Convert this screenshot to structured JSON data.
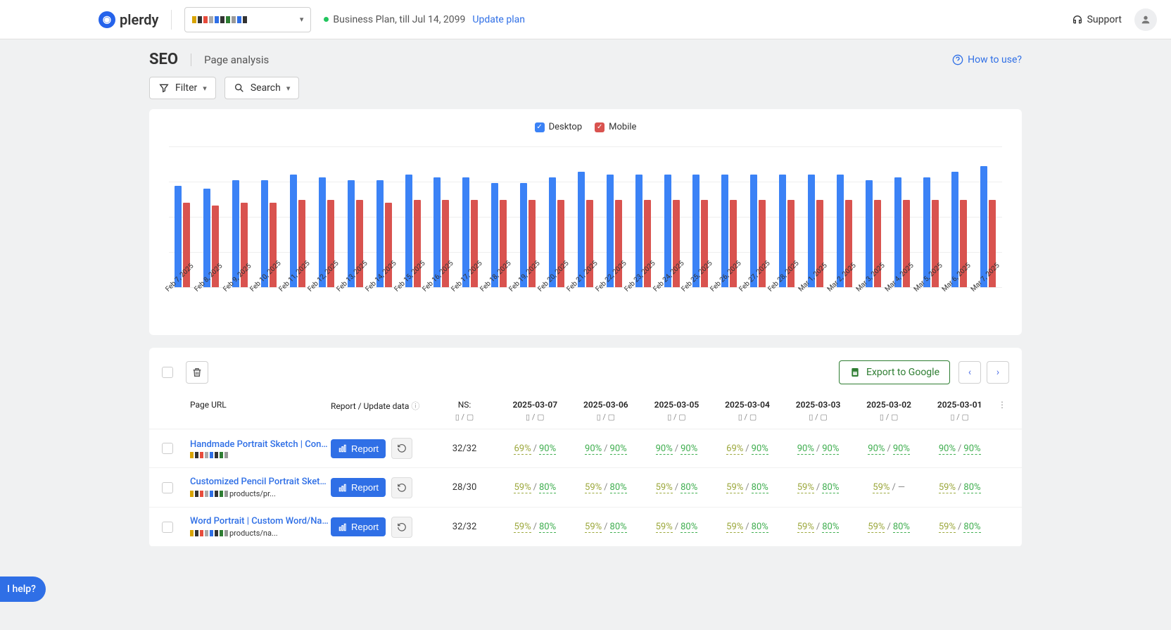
{
  "brand": "plerdy",
  "plan_text": "Business Plan, till Jul 14, 2099",
  "update_plan": "Update plan",
  "support": "Support",
  "page": {
    "title": "SEO",
    "sub": "Page analysis",
    "howto": "How to use?"
  },
  "filter": "Filter",
  "search": "Search",
  "legend": {
    "desktop": "Desktop",
    "mobile": "Mobile"
  },
  "chart": {
    "ymax": 100,
    "grid_steps": 4,
    "bar_color_desktop": "#3b82f6",
    "bar_color_mobile": "#d9534f",
    "points": [
      {
        "label": "Feb 7, 2025",
        "d": 72,
        "m": 60
      },
      {
        "label": "Feb 8, 2025",
        "d": 70,
        "m": 58
      },
      {
        "label": "Feb 9, 2025",
        "d": 76,
        "m": 60
      },
      {
        "label": "Feb 10, 2025",
        "d": 76,
        "m": 60
      },
      {
        "label": "Feb 11, 2025",
        "d": 80,
        "m": 62
      },
      {
        "label": "Feb 12, 2025",
        "d": 78,
        "m": 62
      },
      {
        "label": "Feb 13, 2025",
        "d": 76,
        "m": 62
      },
      {
        "label": "Feb 14, 2025",
        "d": 76,
        "m": 60
      },
      {
        "label": "Feb 15, 2025",
        "d": 80,
        "m": 62
      },
      {
        "label": "Feb 16, 2025",
        "d": 78,
        "m": 62
      },
      {
        "label": "Feb 17, 2025",
        "d": 78,
        "m": 62
      },
      {
        "label": "Feb 18, 2025",
        "d": 74,
        "m": 62
      },
      {
        "label": "Feb 19, 2025",
        "d": 74,
        "m": 62
      },
      {
        "label": "Feb 20, 2025",
        "d": 78,
        "m": 62
      },
      {
        "label": "Feb 21, 2025",
        "d": 82,
        "m": 62
      },
      {
        "label": "Feb 22, 2025",
        "d": 80,
        "m": 62
      },
      {
        "label": "Feb 23, 2025",
        "d": 80,
        "m": 62
      },
      {
        "label": "Feb 24, 2025",
        "d": 80,
        "m": 62
      },
      {
        "label": "Feb 25, 2025",
        "d": 80,
        "m": 62
      },
      {
        "label": "Feb 26, 2025",
        "d": 80,
        "m": 62
      },
      {
        "label": "Feb 27, 2025",
        "d": 80,
        "m": 62
      },
      {
        "label": "Feb 28, 2025",
        "d": 80,
        "m": 62
      },
      {
        "label": "Mar 1, 2025",
        "d": 80,
        "m": 62
      },
      {
        "label": "Mar 2, 2025",
        "d": 80,
        "m": 62
      },
      {
        "label": "Mar 3, 2025",
        "d": 76,
        "m": 62
      },
      {
        "label": "Mar 4, 2025",
        "d": 78,
        "m": 62
      },
      {
        "label": "Mar 5, 2025",
        "d": 78,
        "m": 62
      },
      {
        "label": "Mar 6, 2025",
        "d": 82,
        "m": 62
      },
      {
        "label": "Mar 7, 2025",
        "d": 86,
        "m": 62
      }
    ]
  },
  "export": "Export to Google",
  "columns": {
    "url": "Page URL",
    "report": "Report / Update data",
    "ns": "NS:",
    "icons": "▯ / ▢",
    "dates": [
      "2025-03-07",
      "2025-03-06",
      "2025-03-05",
      "2025-03-04",
      "2025-03-03",
      "2025-03-02",
      "2025-03-01"
    ]
  },
  "report_btn": "Report",
  "rows": [
    {
      "title": "Handmade Portrait Sketch | Convert P...",
      "sub": "",
      "ns": "32/32",
      "cells": [
        [
          "69%",
          "90%",
          "olive",
          "green"
        ],
        [
          "90%",
          "90%",
          "green",
          "green"
        ],
        [
          "90%",
          "90%",
          "green",
          "green"
        ],
        [
          "69%",
          "90%",
          "olive",
          "green"
        ],
        [
          "90%",
          "90%",
          "green",
          "green"
        ],
        [
          "90%",
          "90%",
          "green",
          "green"
        ],
        [
          "90%",
          "90%",
          "green",
          "green"
        ]
      ]
    },
    {
      "title": "Customized Pencil Portrait Sketch| C...",
      "sub": "products/pr...",
      "ns": "28/30",
      "cells": [
        [
          "59%",
          "80%",
          "olive",
          "green"
        ],
        [
          "59%",
          "80%",
          "olive",
          "green"
        ],
        [
          "59%",
          "80%",
          "olive",
          "green"
        ],
        [
          "59%",
          "80%",
          "olive",
          "green"
        ],
        [
          "59%",
          "80%",
          "olive",
          "green"
        ],
        [
          "59%",
          "—",
          "olive",
          "dash"
        ],
        [
          "59%",
          "80%",
          "olive",
          "green"
        ]
      ]
    },
    {
      "title": "Word Portrait | Custom Word/Name P...",
      "sub": "products/na...",
      "ns": "32/32",
      "cells": [
        [
          "59%",
          "80%",
          "olive",
          "green"
        ],
        [
          "59%",
          "80%",
          "olive",
          "green"
        ],
        [
          "59%",
          "80%",
          "olive",
          "green"
        ],
        [
          "59%",
          "80%",
          "olive",
          "green"
        ],
        [
          "59%",
          "80%",
          "olive",
          "green"
        ],
        [
          "59%",
          "80%",
          "olive",
          "green"
        ],
        [
          "59%",
          "80%",
          "olive",
          "green"
        ]
      ]
    }
  ],
  "help": "I help?"
}
